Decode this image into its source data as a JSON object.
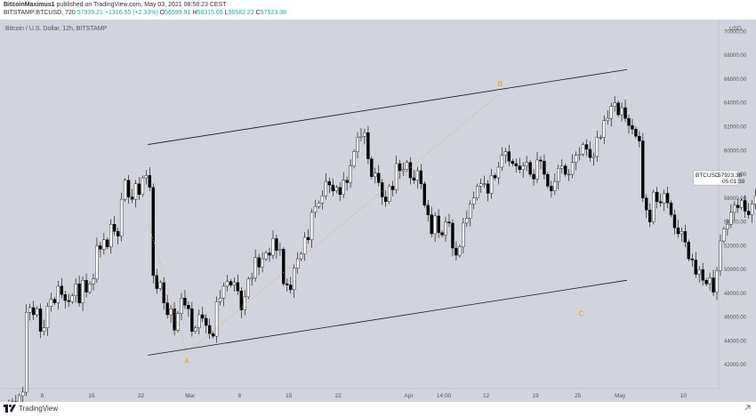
{
  "header": {
    "author": "BitcoinMaximus1",
    "published_text": "published on TradingView.com, May 03, 2021 08:58:23 CEST",
    "symbol_line": "BITSTAMP:BTCUSD, 720",
    "ohlc": {
      "current": "57939.21",
      "change": "+1316.55 (+2.33%)",
      "open_label": "O",
      "open": "56599.91",
      "high_label": "H",
      "high": "58315.65",
      "low_label": "L",
      "low": "56582.22",
      "close_label": "C",
      "close": "57923.38"
    }
  },
  "footer": {
    "brand": "TradingView",
    "logo_icon": "tradingview-logo-icon",
    "expand_icon": "expand-arrow-icon"
  },
  "colors": {
    "background": "#d1d4dc",
    "candle_up_body": "#ffffff",
    "candle_down_body": "#000000",
    "wick": "#000000",
    "channel_line": "#131722",
    "wave_label": "#f7931a",
    "dotted_path": "#e8a070",
    "price_tag_bg": "#ffffff"
  },
  "chart_data": {
    "type": "candlestick",
    "title": "Bitcoin / U.S. Dollar, 12h, BITSTAMP",
    "currency_label": "USD",
    "symbol_tag": "BTCUSD",
    "last_price": "57923.38",
    "countdown": "05:01:39",
    "ylim": [
      40000,
      71000
    ],
    "y_ticks": [
      "70000.00",
      "68000.00",
      "66000.00",
      "64000.00",
      "62000.00",
      "60000.00",
      "58000.00",
      "56000.00",
      "54000.00",
      "52000.00",
      "50000.00",
      "48000.00",
      "46000.00",
      "44000.00",
      "42000.00"
    ],
    "x_ticks": [
      {
        "label": "8",
        "date": "2021-02-08"
      },
      {
        "label": "15",
        "date": "2021-02-15"
      },
      {
        "label": "22",
        "date": "2021-02-22"
      },
      {
        "label": "Mar",
        "date": "2021-03-01"
      },
      {
        "label": "8",
        "date": "2021-03-08"
      },
      {
        "label": "15",
        "date": "2021-03-15"
      },
      {
        "label": "22",
        "date": "2021-03-22"
      },
      {
        "label": "Apr",
        "date": "2021-04-01"
      },
      {
        "label": "14:00",
        "date": "2021-04-06"
      },
      {
        "label": "12",
        "date": "2021-04-12"
      },
      {
        "label": "19",
        "date": "2021-04-19"
      },
      {
        "label": "25",
        "date": "2021-04-25"
      },
      {
        "label": "May",
        "date": "2021-05-01"
      },
      {
        "label": "10",
        "date": "2021-05-10"
      }
    ],
    "x_start": "2021-02-02",
    "x_end": "2021-05-15",
    "closes": [
      36500,
      37800,
      38400,
      38900,
      38100,
      39400,
      39700,
      46400,
      46800,
      46200,
      46700,
      44800,
      45100,
      46900,
      47500,
      47200,
      48600,
      47900,
      47400,
      47300,
      47800,
      48800,
      47200,
      49100,
      48100,
      48800,
      49200,
      52000,
      51700,
      52500,
      51900,
      53800,
      53200,
      52800,
      55900,
      57500,
      56100,
      55900,
      57200,
      56300,
      57700,
      57900,
      56900,
      49500,
      48400,
      48900,
      47200,
      46200,
      46700,
      44900,
      46300,
      47600,
      47000,
      46700,
      44800,
      45100,
      46200,
      45900,
      45300,
      44600,
      44400,
      47300,
      47600,
      48600,
      49000,
      48700,
      48900,
      48200,
      46600,
      47700,
      49200,
      49300,
      51000,
      50200,
      50900,
      51400,
      51200,
      52600,
      51600,
      51700,
      48800,
      48700,
      48300,
      50100,
      50900,
      51300,
      52700,
      52500,
      54800,
      55300,
      55600,
      56200,
      57400,
      57100,
      56600,
      56900,
      56300,
      57500,
      57300,
      58700,
      59900,
      61100,
      61200,
      61500,
      59300,
      57800,
      58100,
      57300,
      56100,
      55700,
      57000,
      56700,
      58900,
      58300,
      58400,
      59000,
      57700,
      57500,
      58300,
      57200,
      55400,
      54600,
      53000,
      54500,
      53100,
      52900,
      54000,
      53900,
      51800,
      51200,
      51900,
      53900,
      54300,
      55500,
      56000,
      57000,
      57200,
      57200,
      56400,
      57900,
      57700,
      58600,
      59600,
      59900,
      59100,
      58900,
      58700,
      58400,
      58700,
      59000,
      58000,
      57600,
      59200,
      59100,
      58000,
      57000,
      56600,
      57400,
      58500,
      58700,
      58000,
      58000,
      59000,
      59600,
      59700,
      60500,
      60100,
      59400,
      59500,
      61100,
      61100,
      62500,
      62700,
      63700,
      64000,
      63000,
      63600,
      62700,
      62100,
      61800,
      61200,
      60800,
      56000,
      55000,
      54000,
      56500,
      55700,
      55600,
      56400,
      55600,
      54600,
      53500,
      53000,
      53200,
      52300,
      50900,
      50800,
      49600,
      50000,
      49100,
      48800,
      49300,
      48100,
      49900,
      52400,
      53400,
      53800,
      54800,
      55400,
      55200,
      55800,
      54900,
      54600,
      55500,
      56200,
      55300,
      56900,
      57800,
      58100,
      57700,
      57800,
      56700,
      57900
    ]
  },
  "annotations": {
    "wave_labels": [
      {
        "text": "A",
        "date": "2021-02-28T12:00",
        "price": 43000
      },
      {
        "text": "B",
        "date": "2021-04-14",
        "price": 64800
      },
      {
        "text": "C",
        "date": "2021-04-25T12:00",
        "price": 47000
      }
    ],
    "channel_upper": {
      "start": {
        "date": "2021-02-23",
        "price": 60500
      },
      "end": {
        "date": "2021-05-02",
        "price": 66800
      }
    },
    "channel_lower": {
      "start": {
        "date": "2021-02-23",
        "price": 42800
      },
      "end": {
        "date": "2021-05-02",
        "price": 49100
      }
    },
    "wave_path": [
      {
        "date": "2021-02-23",
        "price": 54000
      },
      {
        "date": "2021-02-28T12:00",
        "price": 43000
      },
      {
        "date": "2021-04-14",
        "price": 64800
      }
    ]
  }
}
